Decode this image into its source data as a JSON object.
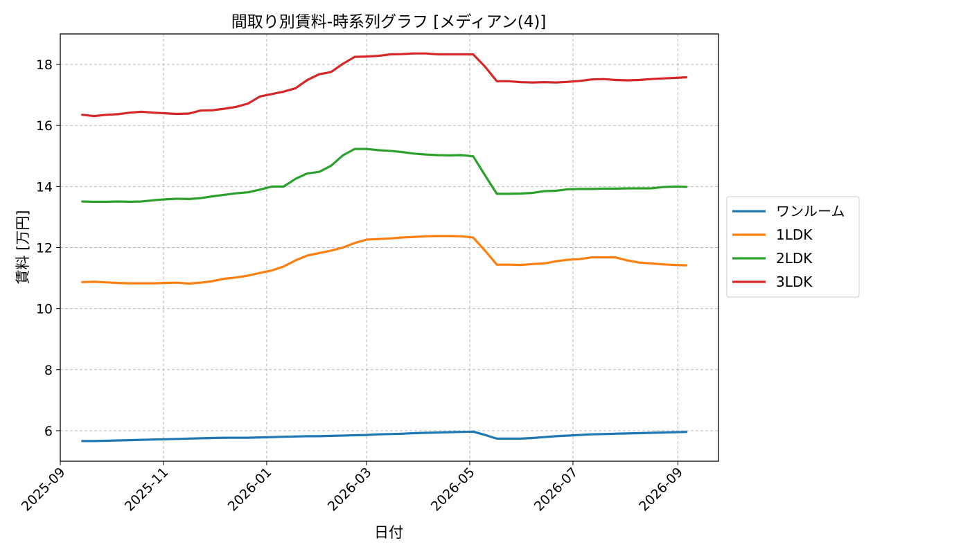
{
  "chart_data": {
    "type": "line",
    "title": "間取り別賃料-時系列グラフ [メディアン(4)]",
    "xlabel": "日付",
    "ylabel": "賃料 [万円]",
    "xlim": [
      "2025-09-01",
      "2026-09-25"
    ],
    "ylim": [
      5.0,
      19.0
    ],
    "yticks": [
      6,
      8,
      10,
      12,
      14,
      16,
      18
    ],
    "xticks": [
      "2025-09",
      "2025-11",
      "2026-01",
      "2026-03",
      "2026-05",
      "2026-07",
      "2026-09"
    ],
    "grid": true,
    "legend_position": "right, outside plot",
    "x": [
      "2025-09-14",
      "2025-09-21",
      "2025-09-28",
      "2025-10-05",
      "2025-10-12",
      "2025-10-19",
      "2025-10-26",
      "2025-11-02",
      "2025-11-09",
      "2025-11-16",
      "2025-11-23",
      "2025-11-30",
      "2025-12-07",
      "2025-12-14",
      "2025-12-21",
      "2025-12-28",
      "2026-01-04",
      "2026-01-11",
      "2026-01-18",
      "2026-01-25",
      "2026-02-01",
      "2026-02-08",
      "2026-02-15",
      "2026-02-22",
      "2026-03-01",
      "2026-03-08",
      "2026-03-15",
      "2026-03-22",
      "2026-03-29",
      "2026-04-05",
      "2026-04-12",
      "2026-04-19",
      "2026-04-26",
      "2026-05-03",
      "2026-05-10",
      "2026-05-17",
      "2026-05-24",
      "2026-05-31",
      "2026-06-07",
      "2026-06-14",
      "2026-06-21",
      "2026-06-28",
      "2026-07-05",
      "2026-07-12",
      "2026-07-19",
      "2026-07-26",
      "2026-08-02",
      "2026-08-09",
      "2026-08-16",
      "2026-08-23",
      "2026-08-30",
      "2026-09-06"
    ],
    "series": [
      {
        "name": "ワンルーム",
        "color": "#1f77b4",
        "values": [
          5.66,
          5.66,
          5.67,
          5.68,
          5.69,
          5.7,
          5.71,
          5.72,
          5.73,
          5.74,
          5.75,
          5.76,
          5.77,
          5.77,
          5.77,
          5.78,
          5.79,
          5.8,
          5.81,
          5.82,
          5.82,
          5.83,
          5.84,
          5.85,
          5.86,
          5.88,
          5.89,
          5.9,
          5.92,
          5.93,
          5.94,
          5.95,
          5.96,
          5.97,
          5.86,
          5.74,
          5.74,
          5.74,
          5.76,
          5.79,
          5.82,
          5.84,
          5.86,
          5.88,
          5.89,
          5.9,
          5.91,
          5.92,
          5.93,
          5.94,
          5.95,
          5.96
        ]
      },
      {
        "name": "1LDK",
        "color": "#ff7f0e",
        "values": [
          10.87,
          10.88,
          10.86,
          10.84,
          10.83,
          10.83,
          10.83,
          10.84,
          10.85,
          10.82,
          10.85,
          10.9,
          10.98,
          11.02,
          11.08,
          11.17,
          11.25,
          11.38,
          11.58,
          11.74,
          11.82,
          11.9,
          12.0,
          12.15,
          12.26,
          12.28,
          12.3,
          12.33,
          12.35,
          12.37,
          12.38,
          12.38,
          12.37,
          12.33,
          11.9,
          11.44,
          11.44,
          11.43,
          11.46,
          11.48,
          11.55,
          11.6,
          11.62,
          11.68,
          11.68,
          11.68,
          11.58,
          11.51,
          11.48,
          11.45,
          11.43,
          11.42
        ]
      },
      {
        "name": "2LDK",
        "color": "#2ca02c",
        "values": [
          13.51,
          13.5,
          13.5,
          13.51,
          13.5,
          13.51,
          13.55,
          13.58,
          13.6,
          13.59,
          13.62,
          13.68,
          13.73,
          13.78,
          13.81,
          13.9,
          14.0,
          14.0,
          14.25,
          14.43,
          14.48,
          14.68,
          15.02,
          15.23,
          15.23,
          15.19,
          15.17,
          15.13,
          15.08,
          15.05,
          15.03,
          15.02,
          15.03,
          14.99,
          14.37,
          13.76,
          13.76,
          13.77,
          13.79,
          13.85,
          13.86,
          13.91,
          13.92,
          13.92,
          13.93,
          13.93,
          13.94,
          13.94,
          13.94,
          13.98,
          14.0,
          13.99
        ]
      },
      {
        "name": "3LDK",
        "color": "#d62728",
        "values": [
          16.35,
          16.31,
          16.35,
          16.37,
          16.42,
          16.45,
          16.42,
          16.4,
          16.38,
          16.39,
          16.49,
          16.5,
          16.55,
          16.61,
          16.72,
          16.95,
          17.03,
          17.11,
          17.22,
          17.49,
          17.68,
          17.75,
          18.02,
          18.25,
          18.26,
          18.28,
          18.33,
          18.34,
          18.36,
          18.36,
          18.33,
          18.33,
          18.33,
          18.33,
          17.93,
          17.45,
          17.45,
          17.42,
          17.41,
          17.42,
          17.41,
          17.43,
          17.46,
          17.51,
          17.52,
          17.49,
          17.48,
          17.49,
          17.52,
          17.54,
          17.56,
          17.58
        ]
      }
    ]
  }
}
